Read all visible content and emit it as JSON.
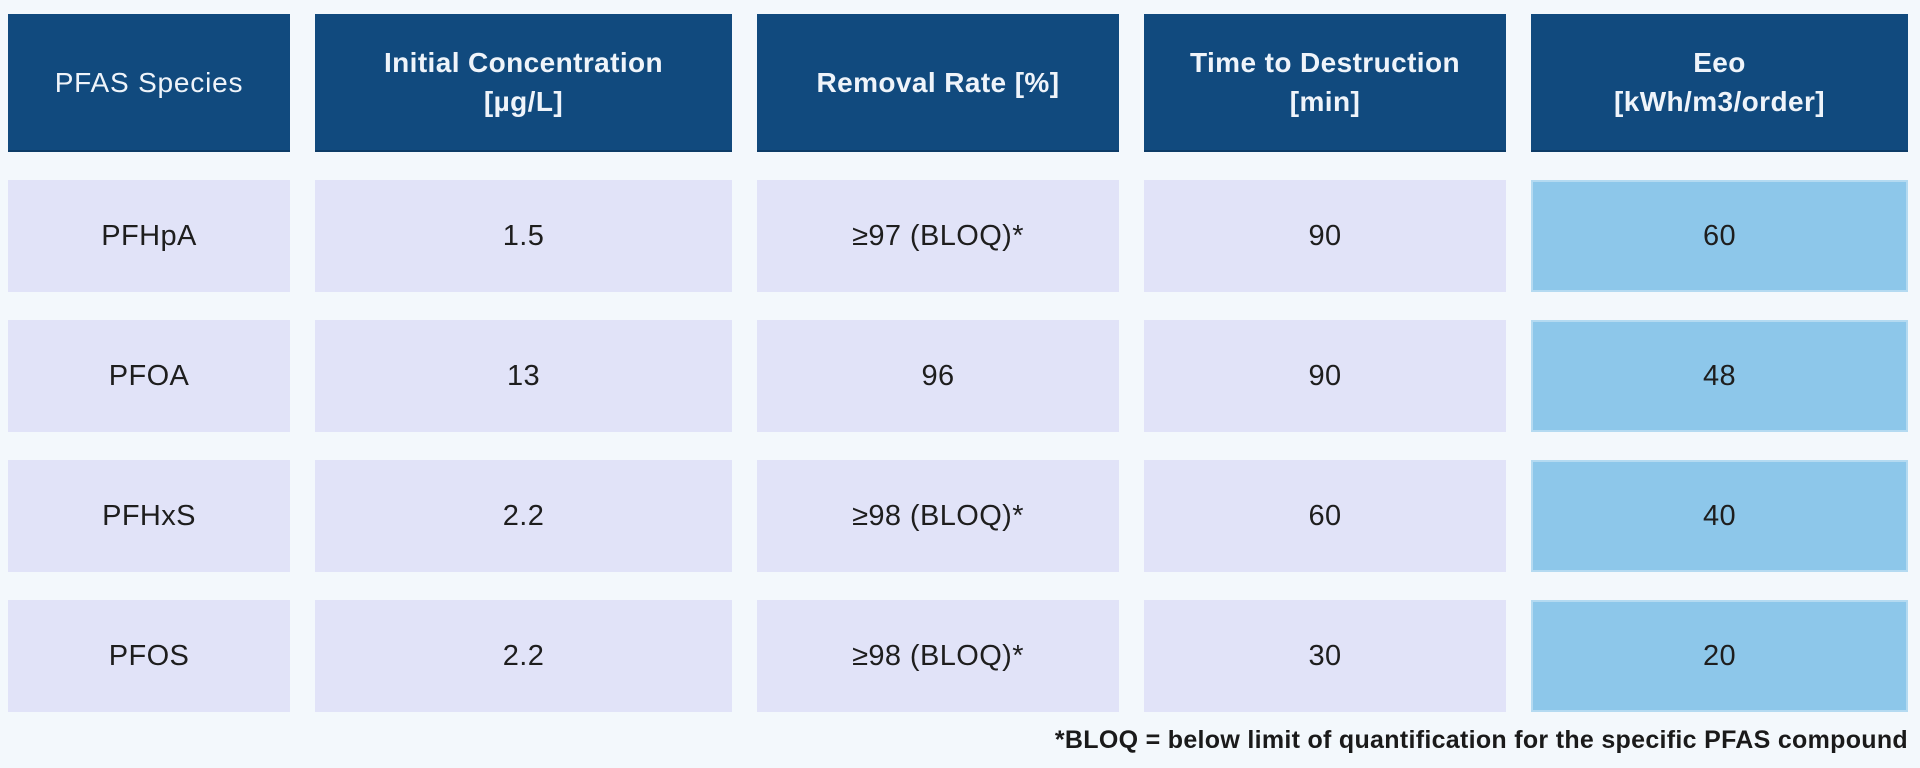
{
  "chart_data": {
    "type": "table",
    "title": "",
    "columns": [
      "PFAS Species",
      "Initial Concentration [µg/L]",
      "Removal Rate [%]",
      "Time to Destruction [min]",
      "Eeo [kWh/m3/order]"
    ],
    "rows": [
      [
        "PFHpA",
        "1.5",
        "≥97 (BLOQ)*",
        "90",
        "60"
      ],
      [
        "PFOA",
        "13",
        "96",
        "90",
        "48"
      ],
      [
        "PFHxS",
        "2.2",
        "≥98 (BLOQ)*",
        "60",
        "40"
      ],
      [
        "PFOS",
        "2.2",
        "≥98 (BLOQ)*",
        "30",
        "20"
      ]
    ],
    "footnote": "*BLOQ = below limit of quantification for the specific PFAS compound",
    "layout_hints": {
      "highlighted_column": "Eeo [kWh/m3/order]",
      "grid": false,
      "header_position": "top"
    }
  },
  "table": {
    "columns": [
      {
        "label": "PFAS Species",
        "unit": ""
      },
      {
        "label": "Initial Concentration",
        "unit": "[µg/L]"
      },
      {
        "label": "Removal Rate [%]",
        "unit": ""
      },
      {
        "label": "Time to Destruction",
        "unit": "[min]"
      },
      {
        "label": "Eeo",
        "unit": "[kWh/m3/order]"
      }
    ],
    "rows": [
      {
        "cells": [
          "PFHpA",
          "1.5",
          "≥97 (BLOQ)*",
          "90",
          "60"
        ]
      },
      {
        "cells": [
          "PFOA",
          "13",
          "96",
          "90",
          "48"
        ]
      },
      {
        "cells": [
          "PFHxS",
          "2.2",
          "≥98 (BLOQ)*",
          "60",
          "40"
        ]
      },
      {
        "cells": [
          "PFOS",
          "2.2",
          "≥98 (BLOQ)*",
          "30",
          "20"
        ]
      }
    ],
    "footnote": "*BLOQ = below limit of quantification for the specific PFAS compound"
  },
  "colors": {
    "page_background": "#F3F8FC",
    "header_background": "#114A7E",
    "header_text": "#EFF4FA",
    "row_background": "#E1E3F8",
    "eeo_highlight_background": "#8DC7EA",
    "cell_text": "#1E1E1E",
    "footnote_text": "#1A1A1A"
  }
}
